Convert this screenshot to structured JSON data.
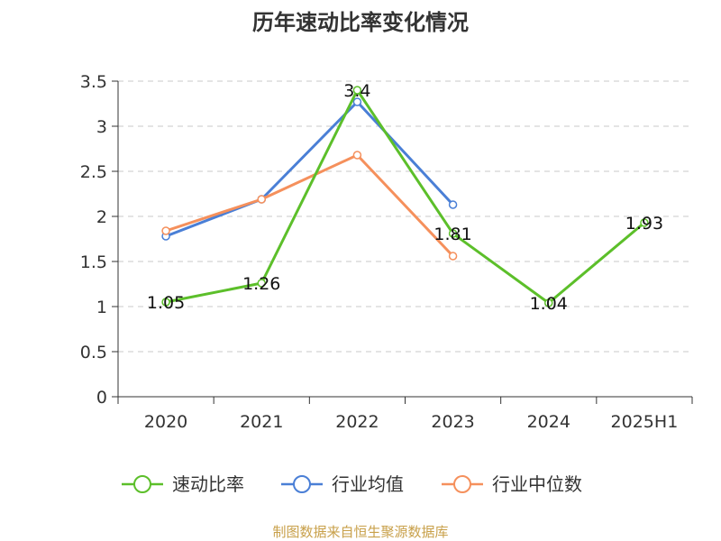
{
  "chart_data": {
    "type": "line",
    "title": "历年速动比率变化情况",
    "categories": [
      "2020",
      "2021",
      "2022",
      "2023",
      "2024",
      "2025H1"
    ],
    "ylim": [
      0,
      3.5
    ],
    "yticks": [
      "0",
      "0.5",
      "1",
      "1.5",
      "2",
      "2.5",
      "3",
      "3.5"
    ],
    "ytick_values": [
      0,
      0.5,
      1,
      1.5,
      2,
      2.5,
      3,
      3.5
    ],
    "grid": true,
    "legend_position": "bottom",
    "series": [
      {
        "name": "速动比率",
        "color": "#5cbf2a",
        "values": [
          1.05,
          1.26,
          3.4,
          1.81,
          1.04,
          1.93
        ],
        "labels": [
          "1.05",
          "1.26",
          "3.4",
          "1.81",
          "1.04",
          "1.93"
        ]
      },
      {
        "name": "行业均值",
        "color": "#4a7fd6",
        "values": [
          1.78,
          2.19,
          3.27,
          2.13,
          null,
          null
        ]
      },
      {
        "name": "行业中位数",
        "color": "#f5905c",
        "values": [
          1.84,
          2.19,
          2.68,
          1.56,
          null,
          null
        ]
      }
    ]
  },
  "source": "制图数据来自恒生聚源数据库"
}
